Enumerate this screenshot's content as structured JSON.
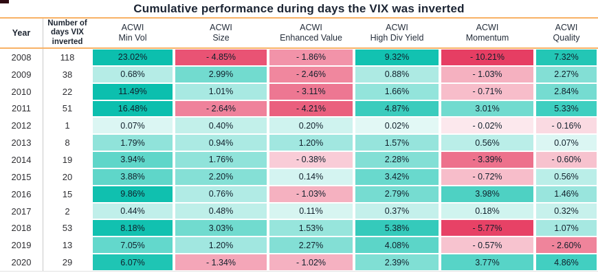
{
  "title": "Cumulative performance during days the VIX was inverted",
  "header": {
    "year_label": "Year",
    "days_label": "Number of days VIX inverted"
  },
  "accents": {
    "rule_color": "#f8b165",
    "divider_color": "#c8c8c8",
    "title_color": "#1b2433",
    "max_positive_color": "#0cbfae",
    "max_negative_color": "#e63e63"
  },
  "chart_data": {
    "type": "heatmap",
    "title": "Cumulative performance during days the VIX was inverted",
    "row_header": "Year",
    "count_header": "Number of days VIX inverted",
    "columns": [
      "ACWI Min Vol",
      "ACWI Size",
      "ACWI Enhanced Value",
      "ACWI High Div Yield",
      "ACWI Momentum",
      "ACWI Quality"
    ],
    "years": [
      2008,
      2009,
      2010,
      2011,
      2012,
      2013,
      2014,
      2015,
      2016,
      2017,
      2018,
      2019,
      2020
    ],
    "days_inverted": [
      118,
      38,
      22,
      51,
      1,
      8,
      19,
      20,
      15,
      2,
      53,
      13,
      29
    ],
    "values_pct": [
      [
        23.02,
        -4.85,
        -1.86,
        9.32,
        -10.21,
        7.32
      ],
      [
        0.68,
        2.99,
        -2.46,
        0.88,
        -1.03,
        2.27
      ],
      [
        11.49,
        1.01,
        -3.11,
        1.66,
        -0.71,
        2.84
      ],
      [
        16.48,
        -2.64,
        -4.21,
        4.87,
        3.01,
        5.33
      ],
      [
        0.07,
        0.4,
        0.2,
        0.02,
        -0.02,
        -0.16
      ],
      [
        1.79,
        0.94,
        1.2,
        1.57,
        0.56,
        0.07
      ],
      [
        3.94,
        1.76,
        -0.38,
        2.28,
        -3.39,
        -0.6
      ],
      [
        3.88,
        2.2,
        0.14,
        3.42,
        -0.72,
        0.56
      ],
      [
        9.86,
        0.76,
        -1.03,
        2.79,
        3.98,
        1.46
      ],
      [
        0.44,
        0.48,
        0.11,
        0.37,
        0.18,
        0.32
      ],
      [
        8.18,
        3.03,
        1.53,
        5.38,
        -5.77,
        1.07
      ],
      [
        7.05,
        1.2,
        2.27,
        4.08,
        -0.57,
        -2.6
      ],
      [
        6.07,
        -1.34,
        -1.02,
        2.39,
        3.77,
        4.86
      ]
    ],
    "cell_colors": [
      [
        "#0cbfae",
        "#e95374",
        "#f293a9",
        "#12c2b1",
        "#e63e63",
        "#23c6b5"
      ],
      [
        "#b5ece6",
        "#72dbcf",
        "#f0879e",
        "#adeae3",
        "#f5b1c0",
        "#83dfd5"
      ],
      [
        "#0cbfae",
        "#a8e9e2",
        "#ed7792",
        "#93e4db",
        "#f7bdca",
        "#75dcd1"
      ],
      [
        "#0cbfae",
        "#ef829b",
        "#ea607e",
        "#3bccbd",
        "#71dbcf",
        "#3ecfc0"
      ],
      [
        "#dbf6f3",
        "#c2f0ea",
        "#cff3ef",
        "#e2f8f5",
        "#fce8ed",
        "#fadae2"
      ],
      [
        "#90e3da",
        "#abeae3",
        "#a1e7e0",
        "#96e4dc",
        "#baeee8",
        "#dbf6f3"
      ],
      [
        "#5fd6c9",
        "#90e3da",
        "#f9ccd7",
        "#83dfd5",
        "#ed718c",
        "#f7c2ce"
      ],
      [
        "#5fd6c9",
        "#85e0d6",
        "#d4f4f1",
        "#69d9cd",
        "#f7bdca",
        "#baeee8"
      ],
      [
        "#10c0af",
        "#b1ebe5",
        "#f5b1c0",
        "#76dcd1",
        "#4ed1c3",
        "#99e5dd"
      ],
      [
        "#c0efea",
        "#beefe9",
        "#d7f5f1",
        "#c4f0eb",
        "#d0f4ef",
        "#c7f1ec"
      ],
      [
        "#12c1b0",
        "#71dbcf",
        "#97e5dc",
        "#35cabb",
        "#e74266",
        "#a6e8e1"
      ],
      [
        "#63d8cc",
        "#a1e7e0",
        "#83dfd5",
        "#5cd5c8",
        "#f7c3cf",
        "#ef849b"
      ],
      [
        "#1fc5b4",
        "#f4a6b8",
        "#f5b1c1",
        "#80dfd4",
        "#57d4c7",
        "#42cfc1"
      ]
    ],
    "legend_position": "none",
    "grid": false
  }
}
